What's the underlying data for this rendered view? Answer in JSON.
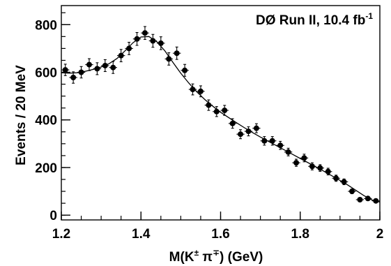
{
  "chart_data": {
    "type": "scatter",
    "annotation": {
      "main": "DØ Run II, 10.4 fb",
      "sup": "-1"
    },
    "xlabel": {
      "pre": "M(K",
      "sup1": "±",
      "mid": " π",
      "sup2": "∓",
      "post": ") (GeV)"
    },
    "ylabel": "Events / 20 MeV",
    "xlim": [
      1.2,
      2.0
    ],
    "ylim": [
      -20,
      880
    ],
    "xticks": [
      {
        "v": 1.2,
        "label": "1.2"
      },
      {
        "v": 1.4,
        "label": "1.4"
      },
      {
        "v": 1.6,
        "label": "1.6"
      },
      {
        "v": 1.8,
        "label": "1.8"
      },
      {
        "v": 2.0,
        "label": "2"
      }
    ],
    "yticks": [
      {
        "v": 0,
        "label": "0"
      },
      {
        "v": 200,
        "label": "200"
      },
      {
        "v": 400,
        "label": "400"
      },
      {
        "v": 600,
        "label": "600"
      },
      {
        "v": 800,
        "label": "800"
      }
    ],
    "x_minor_step": 0.05,
    "y_minor_step": 50,
    "grid": false,
    "points": [
      {
        "x": 1.21,
        "y": 610,
        "err": 24
      },
      {
        "x": 1.23,
        "y": 578,
        "err": 24
      },
      {
        "x": 1.25,
        "y": 600,
        "err": 24
      },
      {
        "x": 1.27,
        "y": 632,
        "err": 25
      },
      {
        "x": 1.29,
        "y": 615,
        "err": 25
      },
      {
        "x": 1.31,
        "y": 628,
        "err": 25
      },
      {
        "x": 1.33,
        "y": 620,
        "err": 25
      },
      {
        "x": 1.35,
        "y": 670,
        "err": 26
      },
      {
        "x": 1.37,
        "y": 700,
        "err": 26
      },
      {
        "x": 1.39,
        "y": 740,
        "err": 27
      },
      {
        "x": 1.41,
        "y": 765,
        "err": 27
      },
      {
        "x": 1.43,
        "y": 732,
        "err": 27
      },
      {
        "x": 1.45,
        "y": 722,
        "err": 27
      },
      {
        "x": 1.47,
        "y": 656,
        "err": 26
      },
      {
        "x": 1.49,
        "y": 680,
        "err": 26
      },
      {
        "x": 1.51,
        "y": 608,
        "err": 25
      },
      {
        "x": 1.53,
        "y": 528,
        "err": 23
      },
      {
        "x": 1.55,
        "y": 520,
        "err": 23
      },
      {
        "x": 1.57,
        "y": 462,
        "err": 22
      },
      {
        "x": 1.59,
        "y": 435,
        "err": 21
      },
      {
        "x": 1.61,
        "y": 440,
        "err": 21
      },
      {
        "x": 1.63,
        "y": 385,
        "err": 20
      },
      {
        "x": 1.65,
        "y": 340,
        "err": 19
      },
      {
        "x": 1.67,
        "y": 352,
        "err": 19
      },
      {
        "x": 1.69,
        "y": 365,
        "err": 19
      },
      {
        "x": 1.71,
        "y": 312,
        "err": 18
      },
      {
        "x": 1.73,
        "y": 312,
        "err": 18
      },
      {
        "x": 1.75,
        "y": 293,
        "err": 17
      },
      {
        "x": 1.77,
        "y": 265,
        "err": 16
      },
      {
        "x": 1.79,
        "y": 220,
        "err": 15
      },
      {
        "x": 1.81,
        "y": 240,
        "err": 16
      },
      {
        "x": 1.83,
        "y": 205,
        "err": 15
      },
      {
        "x": 1.85,
        "y": 198,
        "err": 14
      },
      {
        "x": 1.87,
        "y": 183,
        "err": 14
      },
      {
        "x": 1.89,
        "y": 155,
        "err": 13
      },
      {
        "x": 1.91,
        "y": 140,
        "err": 12
      },
      {
        "x": 1.93,
        "y": 100,
        "err": 10
      },
      {
        "x": 1.95,
        "y": 65,
        "err": 8
      },
      {
        "x": 1.97,
        "y": 70,
        "err": 8
      },
      {
        "x": 1.99,
        "y": 60,
        "err": 8
      }
    ],
    "fit": {
      "x": [
        1.2,
        1.22,
        1.24,
        1.26,
        1.28,
        1.3,
        1.32,
        1.34,
        1.36,
        1.38,
        1.4,
        1.42,
        1.44,
        1.46,
        1.48,
        1.5,
        1.52,
        1.54,
        1.56,
        1.58,
        1.6,
        1.62,
        1.64,
        1.66,
        1.68,
        1.7,
        1.72,
        1.74,
        1.76,
        1.78,
        1.8,
        1.82,
        1.84,
        1.86,
        1.88,
        1.9,
        1.92,
        1.94,
        1.96,
        1.98,
        2.0
      ],
      "y": [
        598,
        596,
        598,
        604,
        612,
        622,
        636,
        658,
        690,
        724,
        748,
        750,
        728,
        690,
        642,
        596,
        555,
        518,
        486,
        458,
        432,
        410,
        388,
        367,
        347,
        328,
        310,
        292,
        274,
        256,
        238,
        220,
        202,
        184,
        165,
        146,
        126,
        104,
        82,
        64,
        55
      ]
    }
  }
}
